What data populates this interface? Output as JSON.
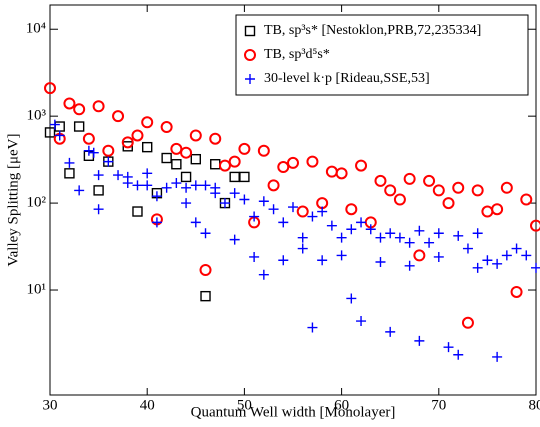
{
  "chart_data": {
    "type": "scatter",
    "xlabel": "Quantum Well width [Monolayer]",
    "ylabel": "Valley Splitting [μeV]",
    "xlim": [
      30,
      80
    ],
    "xticks": [
      30,
      40,
      50,
      60,
      70,
      80
    ],
    "ylim": [
      0.62,
      19000
    ],
    "log_y": true,
    "yticks": [
      {
        "value": 10,
        "label": "10¹"
      },
      {
        "value": 100,
        "label": "10²"
      },
      {
        "value": 1000,
        "label": "10³"
      },
      {
        "value": 10000,
        "label": "10⁴"
      }
    ],
    "legend": "upper right",
    "series": [
      {
        "name": "TB, sp³s* [Nestoklon,PRB,72,235334]",
        "color": "#000000",
        "marker": "square",
        "x": [
          30,
          31,
          32,
          33,
          34,
          35,
          36,
          38,
          39,
          40,
          41,
          42,
          43,
          44,
          45,
          46,
          47,
          48,
          49,
          50
        ],
        "values": [
          650,
          760,
          220,
          760,
          350,
          140,
          300,
          450,
          80,
          440,
          130,
          330,
          280,
          200,
          320,
          8.5,
          280,
          100,
          200,
          200
        ]
      },
      {
        "name": "TB, sp³d⁵s*",
        "color": "#ff0000",
        "marker": "circle",
        "x": [
          30,
          31,
          32,
          33,
          34,
          35,
          36,
          37,
          38,
          39,
          40,
          41,
          42,
          43,
          44,
          45,
          46,
          47,
          48,
          49,
          50,
          51,
          52,
          53,
          54,
          55,
          56,
          57,
          58,
          59,
          60,
          61,
          62,
          63,
          64,
          65,
          66,
          67,
          68,
          69,
          70,
          71,
          72,
          73,
          74,
          75,
          76,
          77,
          78,
          79,
          80
        ],
        "values": [
          2100,
          550,
          1400,
          1200,
          550,
          1300,
          400,
          1000,
          500,
          600,
          850,
          65,
          750,
          420,
          380,
          600,
          17,
          550,
          270,
          300,
          420,
          60,
          400,
          160,
          260,
          290,
          80,
          300,
          100,
          230,
          220,
          85,
          270,
          60,
          180,
          140,
          110,
          190,
          25,
          180,
          140,
          100,
          150,
          4.2,
          140,
          80,
          85,
          150,
          9.5,
          110,
          55
        ]
      },
      {
        "name": "30-level k·p [Rideau,SSE,53]",
        "color": "#0000ff",
        "marker": "plus",
        "x": [
          30.5,
          31,
          32,
          33,
          34,
          34.5,
          35,
          35,
          36,
          37,
          38,
          38,
          39,
          40,
          40,
          41,
          41,
          42,
          43,
          44,
          44,
          45,
          45,
          46,
          46,
          47,
          47,
          48,
          49,
          49,
          50,
          51,
          51,
          52,
          52,
          53,
          54,
          54,
          55,
          56,
          56,
          57,
          57,
          58,
          58,
          59,
          60,
          60,
          61,
          61,
          62,
          62,
          63,
          64,
          64,
          65,
          65,
          66,
          67,
          67,
          68,
          68,
          69,
          70,
          70,
          71,
          72,
          72,
          73,
          74,
          74,
          75,
          76,
          76,
          77,
          78,
          79,
          80
        ],
        "values": [
          800,
          600,
          290,
          140,
          400,
          380,
          210,
          85,
          300,
          210,
          200,
          170,
          160,
          220,
          160,
          120,
          60,
          150,
          170,
          150,
          100,
          160,
          60,
          160,
          45,
          150,
          130,
          100,
          130,
          38,
          110,
          70,
          24,
          105,
          15,
          85,
          60,
          22,
          90,
          40,
          30,
          70,
          3.7,
          80,
          22,
          55,
          40,
          25,
          50,
          8,
          60,
          4.4,
          50,
          40,
          21,
          45,
          3.3,
          40,
          35,
          19,
          48,
          2.6,
          35,
          45,
          24,
          2.2,
          42,
          1.8,
          30,
          45,
          18,
          22,
          20,
          1.7,
          25,
          30,
          25,
          18
        ]
      }
    ]
  }
}
